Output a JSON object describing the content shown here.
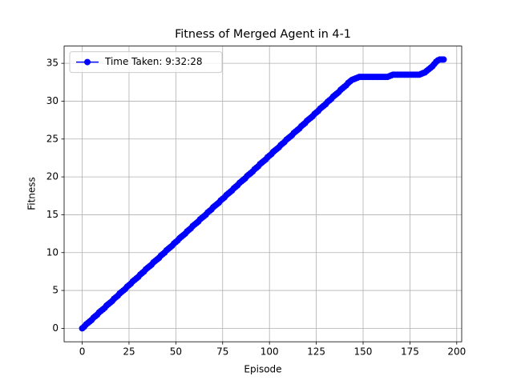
{
  "chart_data": {
    "type": "line",
    "title": "Fitness of Merged Agent in 4-1",
    "xlabel": "Episode",
    "ylabel": "Fitness",
    "x": [
      0,
      1,
      2,
      3,
      4,
      5,
      6,
      7,
      8,
      9,
      10,
      11,
      12,
      13,
      14,
      15,
      16,
      17,
      18,
      19,
      20,
      21,
      22,
      23,
      24,
      25,
      26,
      27,
      28,
      29,
      30,
      31,
      32,
      33,
      34,
      35,
      36,
      37,
      38,
      39,
      40,
      41,
      42,
      43,
      44,
      45,
      46,
      47,
      48,
      49,
      50,
      51,
      52,
      53,
      54,
      55,
      56,
      57,
      58,
      59,
      60,
      61,
      62,
      63,
      64,
      65,
      66,
      67,
      68,
      69,
      70,
      71,
      72,
      73,
      74,
      75,
      76,
      77,
      78,
      79,
      80,
      81,
      82,
      83,
      84,
      85,
      86,
      87,
      88,
      89,
      90,
      91,
      92,
      93,
      94,
      95,
      96,
      97,
      98,
      99,
      100,
      101,
      102,
      103,
      104,
      105,
      106,
      107,
      108,
      109,
      110,
      111,
      112,
      113,
      114,
      115,
      116,
      117,
      118,
      119,
      120,
      121,
      122,
      123,
      124,
      125,
      126,
      127,
      128,
      129,
      130,
      131,
      132,
      133,
      134,
      135,
      136,
      137,
      138,
      139,
      140,
      141,
      142,
      143,
      144,
      145,
      146,
      147,
      148,
      149,
      150,
      151,
      152,
      153,
      154,
      155,
      156,
      157,
      158,
      159,
      160,
      161,
      162,
      163,
      164,
      165,
      166,
      167,
      168,
      169,
      170,
      171,
      172,
      173,
      174,
      175,
      176,
      177,
      178,
      179,
      180,
      181,
      182,
      183,
      184,
      185,
      186,
      187,
      188,
      189,
      190,
      191,
      192,
      193
    ],
    "series": [
      {
        "name": "Time Taken: 9:32:28",
        "color": "#0000ff",
        "values": [
          0,
          0.2,
          0.5,
          0.7,
          0.9,
          1.1,
          1.4,
          1.6,
          1.8,
          2.1,
          2.3,
          2.5,
          2.7,
          3.0,
          3.2,
          3.4,
          3.6,
          3.9,
          4.1,
          4.3,
          4.6,
          4.8,
          5.0,
          5.2,
          5.5,
          5.7,
          5.9,
          6.2,
          6.4,
          6.6,
          6.8,
          7.1,
          7.3,
          7.5,
          7.8,
          8.0,
          8.2,
          8.4,
          8.7,
          8.9,
          9.1,
          9.3,
          9.6,
          9.8,
          10.0,
          10.3,
          10.5,
          10.7,
          10.9,
          11.2,
          11.4,
          11.6,
          11.9,
          12.1,
          12.3,
          12.5,
          12.8,
          13.0,
          13.2,
          13.5,
          13.7,
          13.9,
          14.1,
          14.4,
          14.6,
          14.8,
          15.0,
          15.3,
          15.5,
          15.7,
          16.0,
          16.2,
          16.4,
          16.6,
          16.9,
          17.1,
          17.3,
          17.6,
          17.8,
          18.0,
          18.2,
          18.5,
          18.7,
          18.9,
          19.2,
          19.4,
          19.6,
          19.8,
          20.1,
          20.3,
          20.5,
          20.7,
          21.0,
          21.2,
          21.4,
          21.7,
          21.9,
          22.1,
          22.3,
          22.6,
          22.8,
          23.0,
          23.3,
          23.5,
          23.7,
          23.9,
          24.2,
          24.4,
          24.6,
          24.9,
          25.1,
          25.3,
          25.5,
          25.8,
          26.0,
          26.2,
          26.4,
          26.7,
          26.9,
          27.1,
          27.4,
          27.6,
          27.8,
          28.0,
          28.3,
          28.5,
          28.7,
          29.0,
          29.2,
          29.4,
          29.6,
          29.9,
          30.1,
          30.3,
          30.6,
          30.8,
          31.0,
          31.2,
          31.5,
          31.7,
          31.9,
          32.1,
          32.4,
          32.6,
          32.8,
          32.9,
          33.0,
          33.1,
          33.2,
          33.2,
          33.2,
          33.2,
          33.2,
          33.2,
          33.2,
          33.2,
          33.2,
          33.2,
          33.2,
          33.2,
          33.2,
          33.2,
          33.2,
          33.2,
          33.3,
          33.4,
          33.5,
          33.5,
          33.5,
          33.5,
          33.5,
          33.5,
          33.5,
          33.5,
          33.5,
          33.5,
          33.5,
          33.5,
          33.5,
          33.5,
          33.5,
          33.6,
          33.7,
          33.8,
          34.0,
          34.2,
          34.4,
          34.6,
          34.9,
          35.2,
          35.4,
          35.5,
          35.5,
          35.5
        ]
      }
    ],
    "xlim": [
      -9.65,
      202.65
    ],
    "ylim": [
      -1.775,
      37.275
    ],
    "xticks": [
      0,
      25,
      50,
      75,
      100,
      125,
      150,
      175,
      200
    ],
    "yticks": [
      0,
      5,
      10,
      15,
      20,
      25,
      30,
      35
    ],
    "grid": true,
    "legend": "upper left"
  }
}
